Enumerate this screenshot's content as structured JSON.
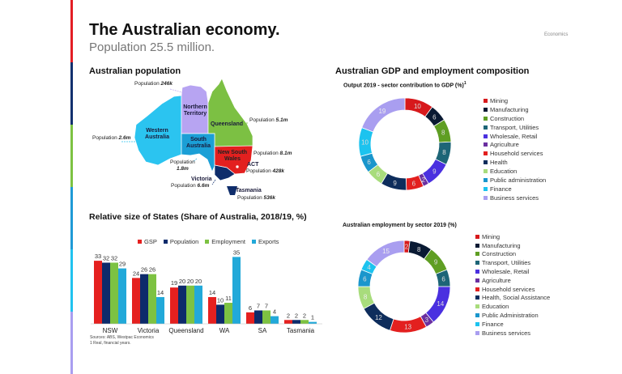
{
  "header": {
    "title": "The Australian economy.",
    "subtitle": "Population 25.5 million.",
    "brand": "Economics"
  },
  "stripe_colors": [
    "#e31e24",
    "#12306e",
    "#7dc242",
    "#1f9ad6",
    "#20c2ef",
    "#a99ef0"
  ],
  "population": {
    "title": "Australian population",
    "states": [
      {
        "name": "Western Australia",
        "pop_label": "Population",
        "pop": "2.6m",
        "color": "#2bc4f0"
      },
      {
        "name": "Northern Territory",
        "pop_label": "Population",
        "pop": "246k",
        "color": "#b7a4f2"
      },
      {
        "name": "Queensland",
        "pop_label": "Population",
        "pop": "5.1m",
        "color": "#7cc043"
      },
      {
        "name": "South Australia",
        "pop_label": "Population",
        "pop": "1.8m",
        "color": "#1b9fd6"
      },
      {
        "name": "New South Wales",
        "pop_label": "Population",
        "pop": "8.1m",
        "color": "#e3201f"
      },
      {
        "name": "ACT",
        "pop_label": "Population",
        "pop": "428k",
        "color": "#ffffff"
      },
      {
        "name": "Victoria",
        "pop_label": "Population",
        "pop": "6.6m",
        "color": "#0f2d6b"
      },
      {
        "name": "Tasmania",
        "pop_label": "Population",
        "pop": "536k",
        "color": "#0f2d6b"
      }
    ]
  },
  "chart_data": [
    {
      "type": "bar",
      "title": "Relative size of States (Share of Australia, 2018/19, %)",
      "categories": [
        "NSW",
        "Victoria",
        "Queensland",
        "WA",
        "SA",
        "Tasmania"
      ],
      "series": [
        {
          "name": "GSP",
          "color": "#e5201f",
          "values": [
            33,
            24,
            19,
            14,
            6,
            2
          ]
        },
        {
          "name": "Population",
          "color": "#0d2b6b",
          "values": [
            32,
            26,
            20,
            10,
            7,
            2
          ]
        },
        {
          "name": "Employment",
          "color": "#7dc242",
          "values": [
            32,
            26,
            20,
            11,
            7,
            2
          ]
        },
        {
          "name": "Exports",
          "color": "#22a9d9",
          "values": [
            29,
            14,
            20,
            35,
            4,
            1
          ]
        }
      ],
      "legend": "top",
      "ylim": [
        0,
        36
      ],
      "footnotes": [
        "Sources: ABS, Westpac Economics",
        "1 Real, financial years."
      ]
    },
    {
      "type": "pie",
      "title": "Output 2019 - sector contribution to GDP (%)",
      "title_sup": "1",
      "labels": [
        "Mining",
        "Manufacturing",
        "Construction",
        "Transport, Utilities",
        "Wholesale, Retail",
        "Agriculture",
        "Household services",
        "Health",
        "Education",
        "Public administration",
        "Finance",
        "Business services"
      ],
      "values": [
        10,
        6,
        8,
        8,
        9,
        2,
        6,
        9,
        6,
        6,
        10,
        19
      ]
    },
    {
      "type": "pie",
      "title": "Australian employment by sector 2019 (%)",
      "labels": [
        "Mining",
        "Manufacturing",
        "Construction",
        "Transport, Utilities",
        "Wholesale, Retail",
        "Agriculture",
        "Household services",
        "Health, Social Assistance",
        "Education",
        "Public Administration",
        "Finance",
        "Business services"
      ],
      "values": [
        2,
        8,
        9,
        6,
        14,
        3,
        13,
        12,
        8,
        6,
        4,
        15
      ]
    }
  ],
  "composition_title": "Australian GDP and employment composition",
  "sector_colors": [
    "#d7191c",
    "#0a1a33",
    "#5f9e23",
    "#1d6577",
    "#4a30e0",
    "#6a2fa0",
    "#e3201f",
    "#0e2d5c",
    "#a8dc7c",
    "#1a96cc",
    "#1cc3ef",
    "#a99ef0"
  ]
}
